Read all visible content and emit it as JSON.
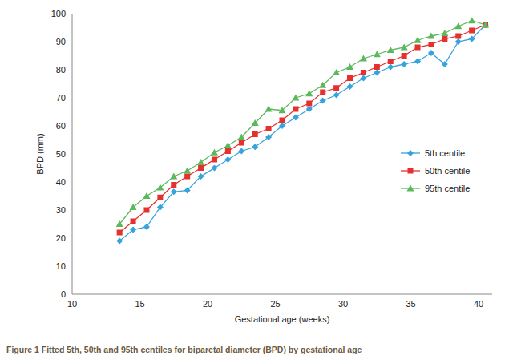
{
  "chart_data": {
    "type": "line",
    "title": "Figure 1 Fitted 5th, 50th and 95th centiles for biparetal diameter (BPD) by gestational age",
    "x_label": "Gestational age (weeks)",
    "y_label": "BPD (mm)",
    "x": [
      13.5,
      14.5,
      15.5,
      16.5,
      17.5,
      18.5,
      19.5,
      20.5,
      21.5,
      22.5,
      23.5,
      24.5,
      25.5,
      26.5,
      27.5,
      28.5,
      29.5,
      30.5,
      31.5,
      32.5,
      33.5,
      34.5,
      35.5,
      36.5,
      37.5,
      38.5,
      39.5,
      40.5
    ],
    "series": [
      {
        "name": "5th centile",
        "color": "#35a3dc",
        "marker": "diamond",
        "values": [
          19,
          23,
          24,
          31,
          36.5,
          37,
          42,
          45,
          48,
          51,
          52.5,
          56,
          60,
          63,
          66,
          69,
          71,
          74,
          77,
          79,
          81,
          82,
          83,
          86,
          82,
          90,
          91,
          96
        ]
      },
      {
        "name": "50th centile",
        "color": "#e5302e",
        "marker": "square",
        "values": [
          22,
          26,
          30,
          34.5,
          39,
          42,
          45,
          48,
          51,
          54,
          57,
          59,
          62,
          66,
          68,
          72,
          73.5,
          77,
          79,
          81,
          83,
          85,
          88,
          89,
          91,
          92,
          94,
          96
        ]
      },
      {
        "name": "95th centile",
        "color": "#5cb85c",
        "marker": "triangle",
        "values": [
          25,
          31,
          35,
          38,
          42,
          44,
          47,
          50.5,
          53,
          56,
          61,
          66,
          65.5,
          70,
          71.5,
          74.5,
          79,
          81,
          84,
          85.5,
          87,
          88,
          90.5,
          92,
          93,
          95.5,
          97.5,
          96
        ]
      }
    ],
    "xlim": [
      10,
      41
    ],
    "xticks": [
      10,
      15,
      20,
      25,
      30,
      35,
      40
    ],
    "ylim": [
      0,
      100
    ],
    "yticks": [
      0,
      10,
      20,
      30,
      40,
      50,
      60,
      70,
      80,
      90,
      100
    ],
    "grid": false,
    "legend": "right"
  }
}
